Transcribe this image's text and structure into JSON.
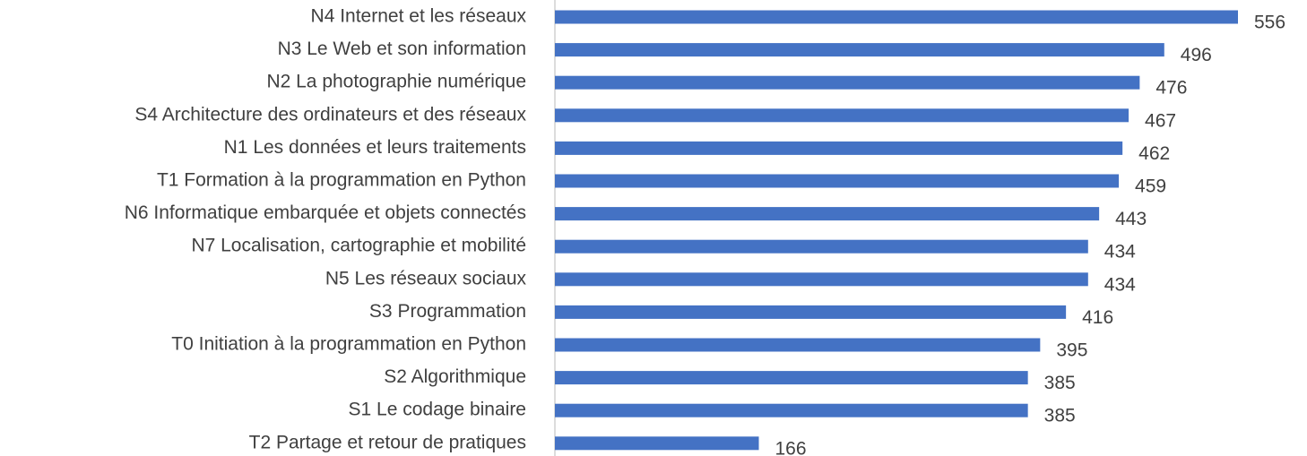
{
  "chart_data": {
    "type": "bar",
    "orientation": "horizontal",
    "color": "#4472c4",
    "categories": [
      "N4 Internet et les réseaux",
      "N3 Le Web et son information",
      "N2 La photographie numérique",
      "S4 Architecture des ordinateurs et des réseaux",
      "N1 Les données et leurs traitements",
      "T1 Formation à la programmation en Python",
      "N6 Informatique embarquée et objets connectés",
      "N7 Localisation, cartographie et mobilité",
      "N5 Les réseaux sociaux",
      "S3 Programmation",
      "T0 Initiation à la programmation en Python",
      "S2 Algorithmique",
      "S1 Le codage binaire",
      "T2 Partage et retour de pratiques"
    ],
    "values": [
      556,
      496,
      476,
      467,
      462,
      459,
      443,
      434,
      434,
      416,
      395,
      385,
      385,
      166
    ]
  }
}
